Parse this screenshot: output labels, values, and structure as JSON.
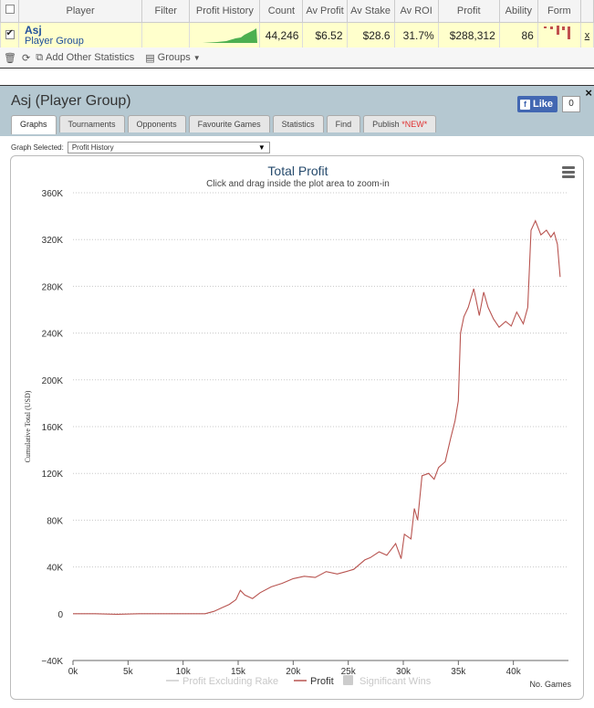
{
  "stats_table": {
    "headers": [
      "Player",
      "Filter",
      "Profit History",
      "Count",
      "Av Profit",
      "Av Stake",
      "Av ROI",
      "Profit",
      "Ability",
      "Form"
    ],
    "row": {
      "name": "Asj",
      "group": "Player Group",
      "count": "44,246",
      "av_profit": "$6.52",
      "av_stake": "$28.6",
      "av_roi": "31.7%",
      "profit": "$288,312",
      "ability": "86",
      "remove": "x"
    },
    "colors": {
      "row_highlight": "#ffffcc",
      "sparkline": "#4caf50",
      "form_neg": "#c0504d"
    }
  },
  "toolbar": {
    "add_stats_label": "Add Other Statistics",
    "groups_label": "Groups"
  },
  "panel": {
    "title": "Asj (Player Group)",
    "close": "×",
    "like_label": "Like",
    "like_count": "0",
    "tabs": [
      {
        "label": "Graphs"
      },
      {
        "label": "Tournaments"
      },
      {
        "label": "Opponents"
      },
      {
        "label": "Favourite Games"
      },
      {
        "label": "Statistics"
      },
      {
        "label": "Find"
      },
      {
        "label": "Publish",
        "badge": "*NEW*"
      }
    ],
    "graph_selected_label": "Graph Selected:",
    "graph_selected_value": "Profit History"
  },
  "chart_data": {
    "type": "line",
    "title": "Total Profit",
    "subtitle": "Click and drag inside the plot area to zoom-in",
    "ylabel": "Cumulative Total (USD)",
    "xlabel": "No. Games",
    "ylim": [
      -40000,
      360000
    ],
    "xlim": [
      0,
      45000
    ],
    "yticks": [
      "−40K",
      "0",
      "40K",
      "80K",
      "120K",
      "160K",
      "200K",
      "240K",
      "280K",
      "320K",
      "360K"
    ],
    "ytick_values": [
      -40000,
      0,
      40000,
      80000,
      120000,
      160000,
      200000,
      240000,
      280000,
      320000,
      360000
    ],
    "xticks": [
      "0k",
      "5k",
      "10k",
      "15k",
      "20k",
      "25k",
      "30k",
      "35k",
      "40k"
    ],
    "xtick_values": [
      0,
      5000,
      10000,
      15000,
      20000,
      25000,
      30000,
      35000,
      40000
    ],
    "grid": true,
    "legend_position": "bottom",
    "legend": [
      {
        "name": "Profit Excluding Rake",
        "color": "#cccccc",
        "shape": "line",
        "hidden": true
      },
      {
        "name": "Profit",
        "color": "#b85450",
        "shape": "line",
        "hidden": false
      },
      {
        "name": "Significant Wins",
        "color": "#cccccc",
        "shape": "box",
        "hidden": true
      }
    ],
    "series": [
      {
        "name": "Profit",
        "color": "#b85450",
        "x": [
          0,
          2000,
          4000,
          6000,
          8000,
          10000,
          12000,
          12800,
          13500,
          14200,
          14800,
          15200,
          15600,
          16300,
          17000,
          18000,
          19000,
          20000,
          21000,
          22000,
          23000,
          24000,
          24800,
          25500,
          26500,
          27000,
          27800,
          28500,
          29300,
          29800,
          30100,
          30700,
          31000,
          31300,
          31700,
          32300,
          32800,
          33200,
          33800,
          34300,
          34700,
          35000,
          35200,
          35500,
          35900,
          36400,
          36900,
          37300,
          37700,
          38200,
          38700,
          39300,
          39800,
          40300,
          40900,
          41300,
          41600,
          42000,
          42500,
          43000,
          43400,
          43700,
          44000,
          44246
        ],
        "y": [
          0,
          0,
          -500,
          0,
          0,
          0,
          0,
          2000,
          5000,
          8000,
          12000,
          20000,
          16000,
          13000,
          18000,
          23000,
          26000,
          30000,
          32000,
          31000,
          36000,
          34000,
          36000,
          38000,
          46000,
          48000,
          53000,
          50000,
          60000,
          47000,
          68000,
          64000,
          90000,
          80000,
          118000,
          120000,
          115000,
          125000,
          130000,
          150000,
          165000,
          182000,
          240000,
          254000,
          262000,
          278000,
          255000,
          275000,
          262000,
          252000,
          245000,
          250000,
          246000,
          258000,
          248000,
          262000,
          328000,
          336000,
          324000,
          328000,
          322000,
          326000,
          316000,
          288000
        ]
      }
    ]
  }
}
